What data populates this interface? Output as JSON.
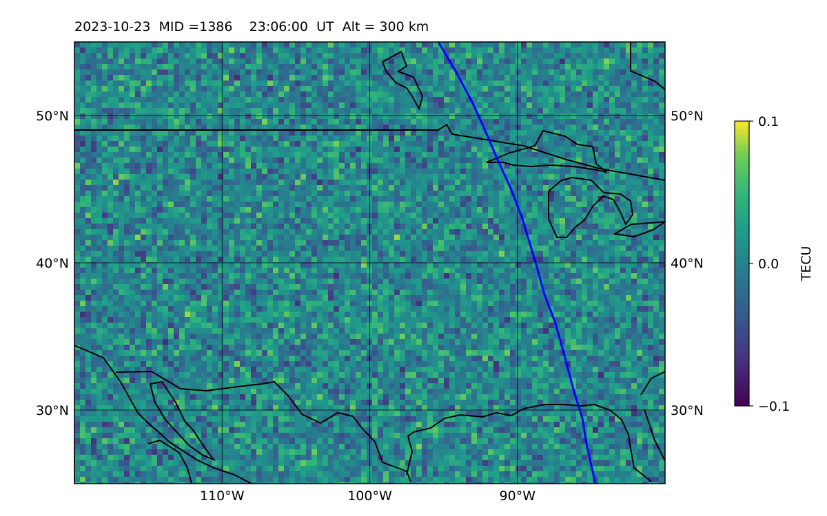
{
  "title": {
    "date": "2023-10-23",
    "mid_label": "MID =1386",
    "time": "23:06:00",
    "time_unit": "UT",
    "altitude_label": "Alt = 300 km"
  },
  "map": {
    "lon_range": [
      -120,
      -80
    ],
    "lat_range": [
      25,
      55
    ],
    "lon_ticks": [
      {
        "value": -110,
        "label": "110°W"
      },
      {
        "value": -100,
        "label": "100°W"
      },
      {
        "value": -90,
        "label": "90°W"
      }
    ],
    "lat_ticks": [
      {
        "value": 30,
        "label": "30°N"
      },
      {
        "value": 40,
        "label": "40°N"
      },
      {
        "value": 50,
        "label": "50°N"
      }
    ],
    "grid": true,
    "track_color": "#0000ff",
    "coastline_color": "#000000"
  },
  "colorbar": {
    "label": "TECU",
    "colormap": "viridis",
    "ticks": [
      {
        "value": 0.1,
        "label": "0.1"
      },
      {
        "value": 0.0,
        "label": "0.0"
      },
      {
        "value": -0.1,
        "label": "−0.1"
      }
    ],
    "range": [
      -0.1,
      0.1
    ]
  }
}
